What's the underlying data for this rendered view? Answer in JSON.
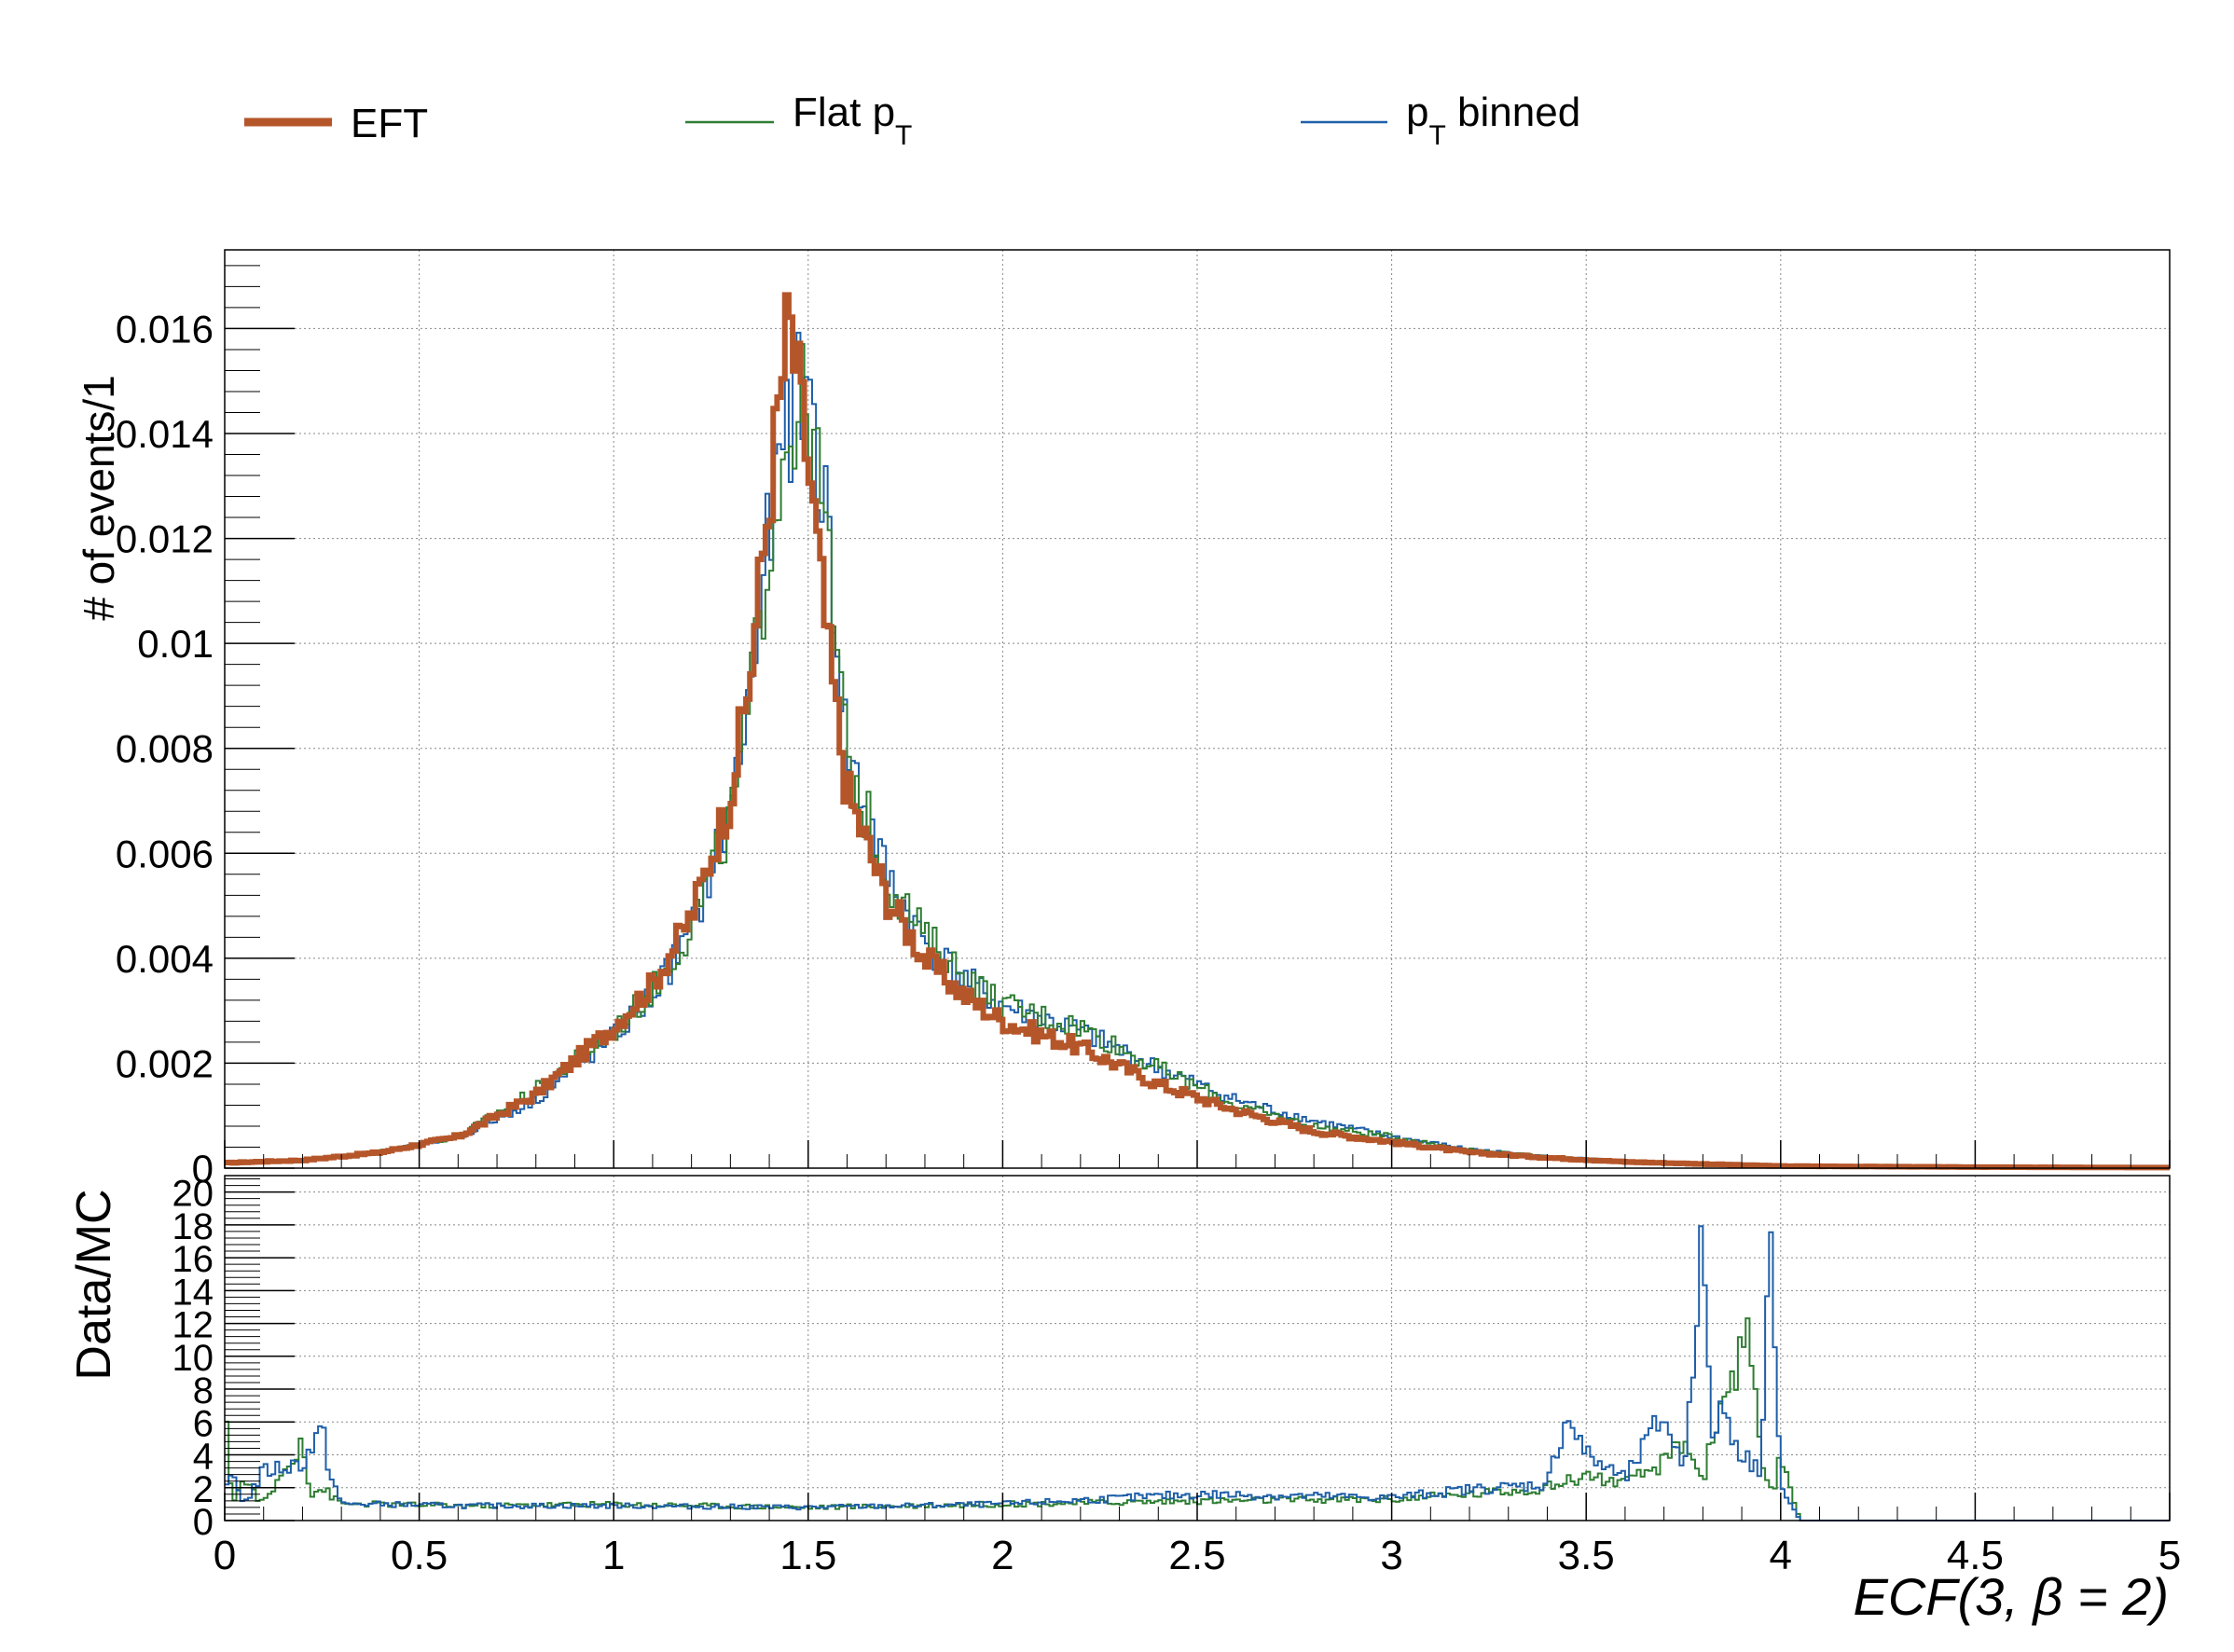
{
  "legend": {
    "entries": [
      {
        "name": "EFT",
        "color": "#b5562a",
        "width": "thick"
      },
      {
        "name": "Flat p",
        "sub": "T",
        "color": "#2e7d32",
        "width": "thin"
      },
      {
        "name": "p",
        "sub": "T",
        "suffix": " binned",
        "color": "#1f5fa8",
        "width": "thin"
      }
    ]
  },
  "chart_data": [
    {
      "panel": "main",
      "type": "line",
      "style": "step-histogram",
      "ylabel": "# of events/1",
      "xlim": [
        0,
        5
      ],
      "ylim": [
        0,
        0.0175
      ],
      "grid": true,
      "yticks": [
        {
          "v": 0,
          "label": "0"
        },
        {
          "v": 0.002,
          "label": "0.002"
        },
        {
          "v": 0.004,
          "label": "0.004"
        },
        {
          "v": 0.006,
          "label": "0.006"
        },
        {
          "v": 0.008,
          "label": "0.008"
        },
        {
          "v": 0.01,
          "label": "0.01"
        },
        {
          "v": 0.012,
          "label": "0.012"
        },
        {
          "v": 0.014,
          "label": "0.014"
        },
        {
          "v": 0.016,
          "label": "0.016"
        }
      ],
      "series": [
        {
          "name": "EFT",
          "color": "#b5562a",
          "x": [
            0,
            0.2,
            0.4,
            0.6,
            0.8,
            1.0,
            1.1,
            1.2,
            1.3,
            1.35,
            1.4,
            1.43,
            1.45,
            1.5,
            1.55,
            1.6,
            1.7,
            1.8,
            1.9,
            2.0,
            2.2,
            2.4,
            2.6,
            2.8,
            3.0,
            3.2,
            3.4,
            3.6,
            3.8,
            4.0,
            4.5,
            5.0
          ],
          "y": [
            0.0001,
            0.00015,
            0.0003,
            0.0006,
            0.0014,
            0.0027,
            0.0035,
            0.0048,
            0.0071,
            0.0093,
            0.0128,
            0.0148,
            0.0162,
            0.0135,
            0.01,
            0.0072,
            0.0052,
            0.004,
            0.0033,
            0.0028,
            0.0023,
            0.0016,
            0.0011,
            0.0007,
            0.0005,
            0.0003,
            0.0002,
            0.00012,
            8e-05,
            4e-05,
            2e-05,
            1e-05
          ]
        },
        {
          "name": "Flat pT",
          "color": "#2e7d32",
          "x": [
            0,
            0.2,
            0.4,
            0.6,
            0.8,
            1.0,
            1.1,
            1.2,
            1.3,
            1.35,
            1.4,
            1.45,
            1.5,
            1.55,
            1.6,
            1.7,
            1.8,
            1.9,
            2.0,
            2.2,
            2.4,
            2.6,
            2.8,
            3.0,
            3.2,
            3.4,
            3.6,
            3.8,
            4.0,
            4.5,
            5.0
          ],
          "y": [
            0.00012,
            0.00016,
            0.00032,
            0.0006,
            0.0015,
            0.0026,
            0.0034,
            0.0046,
            0.0066,
            0.0088,
            0.012,
            0.0142,
            0.0145,
            0.0118,
            0.0078,
            0.0056,
            0.0044,
            0.0037,
            0.0031,
            0.0027,
            0.0019,
            0.0012,
            0.0008,
            0.0006,
            0.00035,
            0.00022,
            0.00014,
            8e-05,
            4e-05,
            2e-05,
            1e-05
          ]
        },
        {
          "name": "pT binned",
          "color": "#1f5fa8",
          "x": [
            0,
            0.2,
            0.4,
            0.6,
            0.8,
            1.0,
            1.1,
            1.2,
            1.3,
            1.35,
            1.4,
            1.45,
            1.5,
            1.55,
            1.6,
            1.7,
            1.8,
            1.9,
            2.0,
            2.2,
            2.4,
            2.6,
            2.8,
            3.0,
            3.2,
            3.4,
            3.6,
            3.8,
            4.0,
            4.5,
            5.0
          ],
          "y": [
            0.00011,
            0.00016,
            0.0003,
            0.00058,
            0.0013,
            0.0025,
            0.0033,
            0.0045,
            0.0068,
            0.009,
            0.0121,
            0.0143,
            0.015,
            0.0122,
            0.008,
            0.0056,
            0.0043,
            0.0036,
            0.0031,
            0.0026,
            0.0019,
            0.0013,
            0.0009,
            0.0006,
            0.00036,
            0.00022,
            0.00014,
            8e-05,
            4e-05,
            2e-05,
            1e-05
          ]
        }
      ]
    },
    {
      "panel": "ratio",
      "type": "line",
      "style": "step-histogram",
      "ylabel": "Data/MC",
      "xlabel": "ECF(3, β = 2)",
      "xlim": [
        0,
        5
      ],
      "ylim": [
        0,
        21
      ],
      "grid": true,
      "xticks": [
        {
          "v": 0,
          "label": "0"
        },
        {
          "v": 0.5,
          "label": "0.5"
        },
        {
          "v": 1,
          "label": "1"
        },
        {
          "v": 1.5,
          "label": "1.5"
        },
        {
          "v": 2,
          "label": "2"
        },
        {
          "v": 2.5,
          "label": "2.5"
        },
        {
          "v": 3,
          "label": "3"
        },
        {
          "v": 3.5,
          "label": "3.5"
        },
        {
          "v": 4,
          "label": "4"
        },
        {
          "v": 4.5,
          "label": "4.5"
        },
        {
          "v": 5,
          "label": "5"
        }
      ],
      "yticks": [
        {
          "v": 0,
          "label": "0"
        },
        {
          "v": 2,
          "label": "2"
        },
        {
          "v": 4,
          "label": "4"
        },
        {
          "v": 6,
          "label": "6"
        },
        {
          "v": 8,
          "label": "8"
        },
        {
          "v": 10,
          "label": "10"
        },
        {
          "v": 12,
          "label": "12"
        },
        {
          "v": 14,
          "label": "14"
        },
        {
          "v": 16,
          "label": "16"
        },
        {
          "v": 18,
          "label": "18"
        },
        {
          "v": 20,
          "label": "20"
        }
      ],
      "series": [
        {
          "name": "Flat pT",
          "color": "#2e7d32",
          "x": [
            0.0,
            0.02,
            0.05,
            0.1,
            0.18,
            0.2,
            0.22,
            0.25,
            0.3,
            0.4,
            0.6,
            1.0,
            1.5,
            2.0,
            2.5,
            3.0,
            3.2,
            3.4,
            3.5,
            3.6,
            3.7,
            3.75,
            3.8,
            3.85,
            3.9,
            3.92,
            3.95,
            3.98,
            4.0,
            4.05
          ],
          "y": [
            6.5,
            1.2,
            2.5,
            1.0,
            4.0,
            5.5,
            1.5,
            2.0,
            1.0,
            1.0,
            0.9,
            1.0,
            0.8,
            1.0,
            1.2,
            1.3,
            1.6,
            2.0,
            2.8,
            2.2,
            3.5,
            5.0,
            2.5,
            7.5,
            10.0,
            11.5,
            3.0,
            1.5,
            4.0,
            0.0
          ]
        },
        {
          "name": "pT binned",
          "color": "#1f5fa8",
          "x": [
            0.0,
            0.02,
            0.05,
            0.1,
            0.2,
            0.25,
            0.27,
            0.3,
            0.4,
            0.6,
            1.0,
            1.5,
            2.0,
            2.5,
            3.0,
            3.2,
            3.4,
            3.45,
            3.5,
            3.6,
            3.7,
            3.75,
            3.8,
            3.82,
            3.85,
            3.9,
            3.95,
            3.97,
            4.0,
            4.05
          ],
          "y": [
            1.5,
            3.0,
            1.0,
            3.0,
            3.5,
            5.5,
            3.0,
            1.0,
            1.0,
            0.9,
            0.9,
            0.8,
            1.0,
            1.6,
            1.4,
            1.9,
            2.2,
            6.5,
            4.0,
            2.5,
            6.5,
            3.0,
            17.5,
            5.0,
            7.0,
            4.0,
            3.0,
            20.0,
            2.0,
            0.0
          ]
        }
      ]
    }
  ]
}
